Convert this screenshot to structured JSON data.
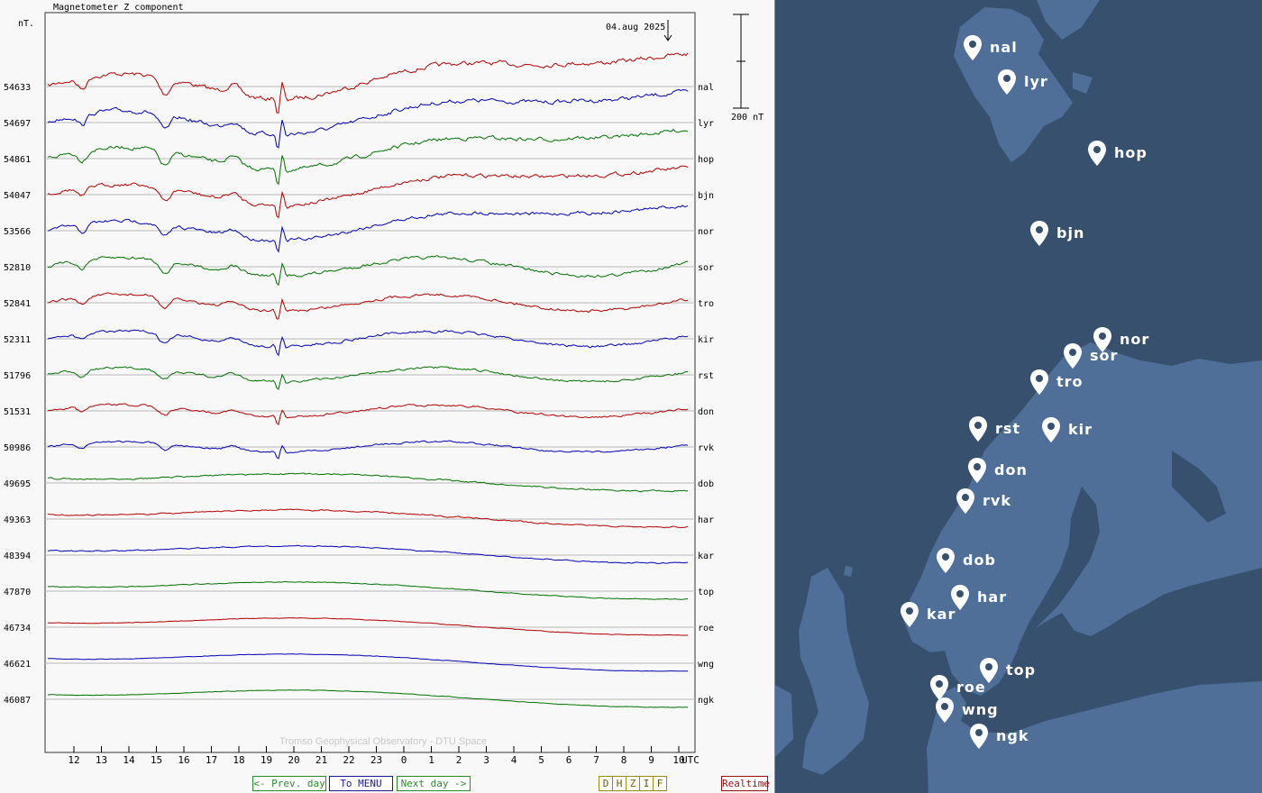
{
  "chart_data": {
    "type": "line",
    "title": "Magnetometer Z component",
    "unit_label": "nT.",
    "date_label": "04.aug 2025",
    "scale_label": "200 nT",
    "xlabel": "UTC",
    "x_ticks": [
      "12",
      "13",
      "14",
      "15",
      "16",
      "17",
      "18",
      "19",
      "20",
      "21",
      "22",
      "23",
      "0",
      "1",
      "2",
      "3",
      "4",
      "5",
      "6",
      "7",
      "8",
      "9",
      "10"
    ],
    "watermark": "Tromso Geophysical Observatory - DTU Space",
    "stations": [
      {
        "code": "nal",
        "baseline": "54633",
        "color": "#b00000"
      },
      {
        "code": "lyr",
        "baseline": "54697",
        "color": "#0000b0"
      },
      {
        "code": "hop",
        "baseline": "54861",
        "color": "#007000"
      },
      {
        "code": "bjn",
        "baseline": "54047",
        "color": "#b00000"
      },
      {
        "code": "nor",
        "baseline": "53566",
        "color": "#0000b0"
      },
      {
        "code": "sor",
        "baseline": "52810",
        "color": "#007000"
      },
      {
        "code": "tro",
        "baseline": "52841",
        "color": "#b00000"
      },
      {
        "code": "kir",
        "baseline": "52311",
        "color": "#0000b0"
      },
      {
        "code": "rst",
        "baseline": "51796",
        "color": "#007000"
      },
      {
        "code": "don",
        "baseline": "51531",
        "color": "#b00000"
      },
      {
        "code": "rvk",
        "baseline": "50986",
        "color": "#0000b0"
      },
      {
        "code": "dob",
        "baseline": "49695",
        "color": "#007000"
      },
      {
        "code": "har",
        "baseline": "49363",
        "color": "#b00000"
      },
      {
        "code": "kar",
        "baseline": "48394",
        "color": "#0000b0"
      },
      {
        "code": "top",
        "baseline": "47870",
        "color": "#007000"
      },
      {
        "code": "roe",
        "baseline": "46734",
        "color": "#b00000"
      },
      {
        "code": "wng",
        "baseline": "46621",
        "color": "#0000b0"
      },
      {
        "code": "ngk",
        "baseline": "46087",
        "color": "#007000"
      }
    ]
  },
  "nav": {
    "prev": "<- Prev. day",
    "menu": "To MENU",
    "next": "Next day ->",
    "components": [
      "D",
      "H",
      "Z",
      "I",
      "F"
    ],
    "realtime": "Realtime"
  },
  "map": {
    "sea_color": "#37506e",
    "land_color": "#4f6f99",
    "markers": [
      "nal",
      "lyr",
      "hop",
      "bjn",
      "nor",
      "sor",
      "tro",
      "rst",
      "kir",
      "don",
      "rvk",
      "dob",
      "har",
      "kar",
      "top",
      "roe",
      "wng",
      "ngk"
    ]
  }
}
